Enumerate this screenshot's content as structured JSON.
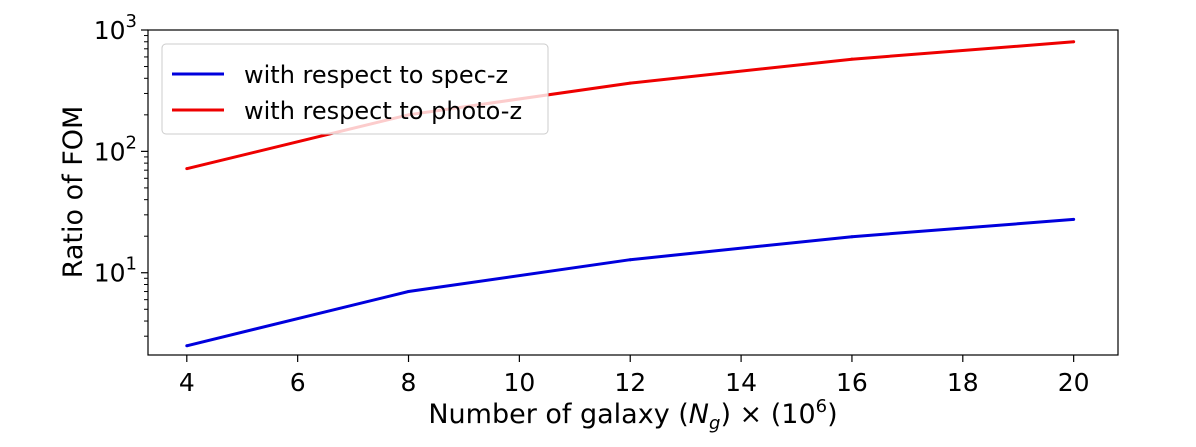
{
  "chart_data": {
    "type": "line",
    "x": [
      4,
      8,
      12,
      16,
      20
    ],
    "series": [
      {
        "name": "with respect to spec-z",
        "color": "#0000dd",
        "values": [
          2.5,
          7.0,
          12.8,
          19.8,
          27.5
        ]
      },
      {
        "name": "with respect to photo-z",
        "color": "#ee0000",
        "values": [
          72,
          200,
          365,
          575,
          800
        ]
      }
    ],
    "xlabel_prefix": "Number of galaxy (",
    "xlabel_var": "N",
    "xlabel_sub": "g",
    "xlabel_mid": ") × (10",
    "xlabel_sup": "6",
    "xlabel_suffix": ")",
    "ylabel": "Ratio of FOM",
    "xlim": [
      3.3,
      20.8
    ],
    "ylim": [
      2.1,
      1000
    ],
    "yscale": "log",
    "xticks": [
      4,
      6,
      8,
      10,
      12,
      14,
      16,
      18,
      20
    ],
    "yticks": [
      {
        "value": 10,
        "base": "10",
        "exp": "1"
      },
      {
        "value": 100,
        "base": "10",
        "exp": "2"
      },
      {
        "value": 1000,
        "base": "10",
        "exp": "3"
      }
    ],
    "grid": false,
    "legend_position": "top-left"
  }
}
